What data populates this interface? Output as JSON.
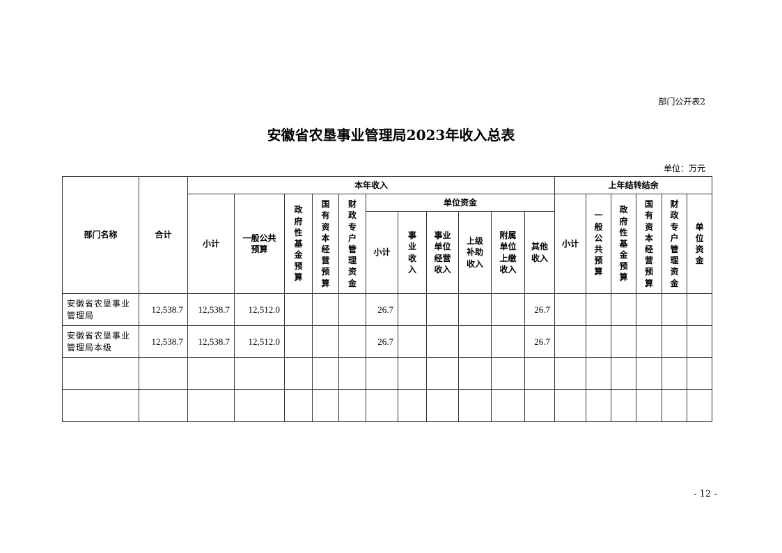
{
  "doc_label": "部门公开表2",
  "title": "安徽省农垦事业管理局2023年收入总表",
  "unit": "单位：万元",
  "page_number": "- 12 -",
  "headers": {
    "dept_name": "部门名称",
    "total": "合计",
    "current_year": "本年收入",
    "subtotal": "小计",
    "general_budget": "一般公共\n预算",
    "gov_fund": "政府性基金预算",
    "state_capital": "国有资本经营预算",
    "fiscal_special": "财政专户管理资金",
    "unit_funds": "单位资金",
    "uf_subtotal": "小计",
    "business_income": "事业收入",
    "business_operating": "事业\n单位\n经营\n收入",
    "superior_subsidy": "上级\n补助\n收入",
    "affiliated_paid": "附属\n单位\n上缴\n收入",
    "other_income": "其他\n收入",
    "carryover": "上年结转结余",
    "co_subtotal": "小计",
    "co_general_budget": "一般公共预算",
    "co_gov_fund": "政府性基金预算",
    "co_state_capital": "国有资本经营预算",
    "co_fiscal_special": "财政专户管理资金",
    "co_unit_funds": "单位资金"
  },
  "rows": [
    {
      "name": "安徽省农垦事业管理局",
      "total": "12,538.7",
      "subtotal": "12,538.7",
      "general_budget": "12,512.0",
      "uf_subtotal": "26.7",
      "other_income": "26.7"
    },
    {
      "name": "安徽省农垦事业管理局本级",
      "total": "12,538.7",
      "subtotal": "12,538.7",
      "general_budget": "12,512.0",
      "uf_subtotal": "26.7",
      "other_income": "26.7"
    },
    {},
    {}
  ]
}
